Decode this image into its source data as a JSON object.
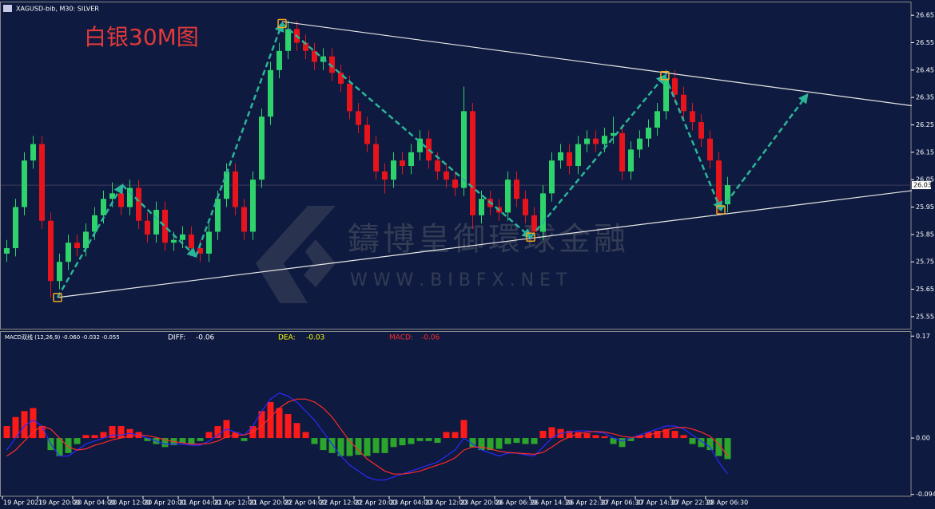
{
  "chart_data": {
    "type": "candlestick",
    "symbol_label": "XAGUSD-bib, M30:  SILVER",
    "title": "白银30M图",
    "watermark": "鑄博皇御環球金融",
    "watermark_url": "W W W . B I B F X . N E T",
    "up_color": "#2fd36b",
    "down_color": "#e8141c",
    "open": [
      25.78,
      25.8,
      25.95,
      26.12,
      26.18,
      25.9,
      25.68,
      25.75,
      25.82,
      25.8,
      25.86,
      25.92,
      25.98,
      26.0,
      25.95,
      26.02,
      25.9,
      25.85,
      25.94,
      25.82,
      25.83,
      25.85,
      25.8,
      25.78,
      25.86,
      25.98,
      26.08,
      25.95,
      25.86,
      26.05,
      26.28,
      26.45,
      26.52,
      26.6,
      26.55,
      26.52,
      26.48,
      26.5,
      26.44,
      26.4,
      26.3,
      26.25,
      26.18,
      26.08,
      26.05,
      26.12,
      26.1,
      26.15,
      26.2,
      26.12,
      26.08,
      26.05,
      26.02,
      26.3,
      25.92,
      25.98,
      25.95,
      25.93,
      26.05,
      25.98,
      25.92,
      25.86,
      26.0,
      26.12,
      26.15,
      26.1,
      26.18,
      26.2,
      26.18,
      26.21,
      26.22,
      26.08,
      26.16,
      26.2,
      26.24,
      26.3,
      26.42,
      26.36,
      26.3,
      26.26,
      26.2,
      26.12,
      25.96
    ],
    "high": [
      25.83,
      25.98,
      26.15,
      26.21,
      26.21,
      25.93,
      25.78,
      25.85,
      25.85,
      25.89,
      25.95,
      26.01,
      26.04,
      26.03,
      26.05,
      26.05,
      25.93,
      25.97,
      25.97,
      25.86,
      25.88,
      25.88,
      25.83,
      25.89,
      26.01,
      26.11,
      26.11,
      25.98,
      26.08,
      26.31,
      26.48,
      26.55,
      26.63,
      26.63,
      26.58,
      26.55,
      26.53,
      26.53,
      26.47,
      26.43,
      26.33,
      26.28,
      26.21,
      26.11,
      26.15,
      26.15,
      26.18,
      26.23,
      26.23,
      26.15,
      26.11,
      26.08,
      26.39,
      26.33,
      26.01,
      26.01,
      25.98,
      26.08,
      26.08,
      26.01,
      25.95,
      26.03,
      26.15,
      26.18,
      26.18,
      26.21,
      26.23,
      26.23,
      26.24,
      26.28,
      26.25,
      26.19,
      26.23,
      26.27,
      26.33,
      26.45,
      26.45,
      26.39,
      26.33,
      26.29,
      26.23,
      26.15,
      26.06
    ],
    "low": [
      25.75,
      25.77,
      25.92,
      26.09,
      25.87,
      25.62,
      25.65,
      25.72,
      25.77,
      25.77,
      25.83,
      25.89,
      25.95,
      25.92,
      25.92,
      25.87,
      25.82,
      25.82,
      25.79,
      25.79,
      25.8,
      25.77,
      25.75,
      25.75,
      25.83,
      25.95,
      25.92,
      25.83,
      25.83,
      26.02,
      26.25,
      26.42,
      26.49,
      26.52,
      26.49,
      26.45,
      26.45,
      26.41,
      26.37,
      26.27,
      26.22,
      26.15,
      26.05,
      26.0,
      26.02,
      26.07,
      26.07,
      26.12,
      26.09,
      26.05,
      26.02,
      25.99,
      25.99,
      25.87,
      25.89,
      25.92,
      25.9,
      25.9,
      25.95,
      25.89,
      25.84,
      25.83,
      25.97,
      26.09,
      26.07,
      26.07,
      26.15,
      26.15,
      26.15,
      26.18,
      26.05,
      26.05,
      26.13,
      26.17,
      26.21,
      26.27,
      26.33,
      26.27,
      26.23,
      26.17,
      26.09,
      25.93,
      25.93
    ],
    "close": [
      25.8,
      25.95,
      26.12,
      26.18,
      25.9,
      25.68,
      25.75,
      25.82,
      25.8,
      25.86,
      25.92,
      25.98,
      26.0,
      25.95,
      26.02,
      25.9,
      25.85,
      25.94,
      25.82,
      25.83,
      25.85,
      25.8,
      25.78,
      25.86,
      25.98,
      26.08,
      25.95,
      25.86,
      26.05,
      26.28,
      26.45,
      26.52,
      26.6,
      26.55,
      26.52,
      26.48,
      26.5,
      26.44,
      26.4,
      26.3,
      26.25,
      26.18,
      26.08,
      26.05,
      26.12,
      26.1,
      26.15,
      26.2,
      26.12,
      26.08,
      26.05,
      26.02,
      26.3,
      25.92,
      25.98,
      25.95,
      25.93,
      26.05,
      25.98,
      25.92,
      25.86,
      26.0,
      26.12,
      26.15,
      26.1,
      26.18,
      26.2,
      26.18,
      26.21,
      26.22,
      26.08,
      26.16,
      26.2,
      26.24,
      26.3,
      26.42,
      26.36,
      26.3,
      26.26,
      26.2,
      26.12,
      25.96,
      26.03
    ],
    "ylim": [
      25.506,
      26.7
    ],
    "yticks": [
      25.55,
      25.65,
      25.75,
      25.85,
      25.95,
      26.05,
      26.15,
      26.25,
      26.35,
      26.45,
      26.55,
      26.65
    ],
    "xticks": [
      {
        "value": 0,
        "label": "19 Apr 2021"
      },
      {
        "value": 4,
        "label": "19 Apr 20:00"
      },
      {
        "value": 8,
        "label": "20 Apr 04:00"
      },
      {
        "value": 12,
        "label": "20 Apr 12:00"
      },
      {
        "value": 16,
        "label": "20 Apr 20:00"
      },
      {
        "value": 20,
        "label": "21 Apr 04:00"
      },
      {
        "value": 24,
        "label": "21 Apr 12:00"
      },
      {
        "value": 28,
        "label": "21 Apr 20:00"
      },
      {
        "value": 32,
        "label": "22 Apr 04:00"
      },
      {
        "value": 36,
        "label": "22 Apr 12:00"
      },
      {
        "value": 40,
        "label": "22 Apr 20:00"
      },
      {
        "value": 44,
        "label": "23 Apr 04:00"
      },
      {
        "value": 48,
        "label": "23 Apr 12:00"
      },
      {
        "value": 52,
        "label": "23 Apr 20:00"
      },
      {
        "value": 56,
        "label": "26 Apr 06:30"
      },
      {
        "value": 60,
        "label": "26 Apr 14:30"
      },
      {
        "value": 64,
        "label": "26 Apr 22:30"
      },
      {
        "value": 68,
        "label": "27 Apr 06:30"
      },
      {
        "value": 72,
        "label": "27 Apr 14:30"
      },
      {
        "value": 76,
        "label": "27 Apr 22:30"
      },
      {
        "value": 80,
        "label": "28 Apr 06:30"
      }
    ],
    "current_price": 26.03,
    "zigzag": {
      "color": "#2bb598",
      "x": [
        6.27,
        13.64,
        22,
        31.82,
        60.09,
        75.36,
        81.73,
        91.55
      ],
      "y": [
        25.62,
        26.03,
        25.77,
        26.62,
        25.84,
        26.43,
        25.94,
        26.36
      ]
    },
    "pivots": {
      "color": "#f5a623",
      "x": [
        6.27,
        31.82,
        60.09,
        75.36,
        81.73
      ],
      "y": [
        25.62,
        26.62,
        25.84,
        26.43,
        25.94
      ]
    },
    "trendline_color": "#e8e8e8",
    "trendlines": [
      {
        "x": [
          31.82,
          103.45
        ],
        "y": [
          26.627,
          26.32
        ]
      },
      {
        "x": [
          6.27,
          103.45
        ],
        "y": [
          25.62,
          26.01
        ]
      }
    ],
    "macd": {
      "legend": "MACD双线 (12,26,9) -0.060 -0.032 -0.055",
      "positive_color": "#ff1a1a",
      "negative_color": "#2ca52c",
      "histogram": [
        0.02,
        0.035,
        0.045,
        0.05,
        0.02,
        -0.02,
        -0.03,
        -0.025,
        -0.01,
        0.005,
        0.005,
        0.01,
        0.02,
        0.02,
        0.015,
        0.01,
        -0.005,
        -0.01,
        -0.015,
        -0.012,
        -0.008,
        -0.01,
        -0.005,
        0.01,
        0.02,
        0.03,
        0.01,
        -0.005,
        0.02,
        0.045,
        0.06,
        0.05,
        0.04,
        0.025,
        0.01,
        -0.01,
        -0.02,
        -0.025,
        -0.03,
        -0.03,
        -0.028,
        -0.03,
        -0.025,
        -0.025,
        -0.015,
        -0.012,
        -0.01,
        -0.005,
        -0.005,
        -0.008,
        0.01,
        0.01,
        0.03,
        -0.015,
        -0.02,
        -0.02,
        -0.018,
        -0.01,
        -0.008,
        -0.01,
        -0.01,
        0.012,
        0.018,
        0.015,
        0.012,
        0.01,
        0.008,
        0.005,
        0.003,
        -0.01,
        -0.015,
        -0.005,
        0.005,
        0.01,
        0.012,
        0.015,
        0.012,
        0.005,
        -0.01,
        -0.015,
        -0.02,
        -0.03,
        -0.035
      ],
      "diff": {
        "name": "DIFF:",
        "value": -0.06,
        "color": "#2a2aff",
        "label_color": "#ffffff",
        "values": [
          -0.02,
          0.0,
          0.02,
          0.03,
          0.02,
          -0.01,
          -0.03,
          -0.03,
          -0.02,
          -0.01,
          -0.005,
          0.0,
          0.005,
          0.005,
          0.008,
          0.005,
          0.0,
          -0.005,
          -0.01,
          -0.01,
          -0.01,
          -0.012,
          -0.012,
          -0.005,
          0.005,
          0.015,
          0.01,
          0.005,
          0.02,
          0.045,
          0.065,
          0.075,
          0.07,
          0.06,
          0.045,
          0.03,
          0.01,
          -0.01,
          -0.03,
          -0.045,
          -0.055,
          -0.065,
          -0.07,
          -0.07,
          -0.065,
          -0.06,
          -0.055,
          -0.05,
          -0.045,
          -0.04,
          -0.03,
          -0.02,
          0.0,
          -0.01,
          -0.02,
          -0.025,
          -0.03,
          -0.025,
          -0.025,
          -0.028,
          -0.03,
          -0.015,
          0.0,
          0.008,
          0.01,
          0.012,
          0.012,
          0.01,
          0.008,
          0.0,
          -0.005,
          0.0,
          0.005,
          0.01,
          0.015,
          0.02,
          0.02,
          0.015,
          0.005,
          -0.005,
          -0.015,
          -0.04,
          -0.06
        ]
      },
      "dea": {
        "name": "DEA:",
        "value": -0.03,
        "color": "#ff2a2a",
        "label_color": "#ffff00",
        "values": [
          -0.03,
          -0.02,
          -0.005,
          0.01,
          0.02,
          0.015,
          0.0,
          -0.015,
          -0.02,
          -0.018,
          -0.012,
          -0.008,
          -0.003,
          0.0,
          0.003,
          0.005,
          0.004,
          0.001,
          -0.003,
          -0.006,
          -0.008,
          -0.01,
          -0.01,
          -0.009,
          -0.005,
          0.002,
          0.005,
          0.005,
          0.01,
          0.02,
          0.035,
          0.05,
          0.06,
          0.065,
          0.065,
          0.06,
          0.05,
          0.035,
          0.015,
          -0.005,
          -0.02,
          -0.035,
          -0.045,
          -0.055,
          -0.06,
          -0.06,
          -0.058,
          -0.055,
          -0.05,
          -0.045,
          -0.04,
          -0.033,
          -0.02,
          -0.015,
          -0.015,
          -0.018,
          -0.022,
          -0.024,
          -0.025,
          -0.026,
          -0.027,
          -0.024,
          -0.015,
          -0.005,
          0.002,
          0.007,
          0.01,
          0.011,
          0.01,
          0.007,
          0.003,
          0.001,
          0.002,
          0.005,
          0.009,
          0.013,
          0.017,
          0.018,
          0.015,
          0.01,
          0.003,
          -0.01,
          -0.03
        ]
      },
      "macd_label": {
        "name": "MACD:",
        "value": -0.06,
        "label_color": "#ff2a2a"
      },
      "ylim": [
        -0.097,
        0.177
      ],
      "yticks": [
        0.17,
        {
          "value": 0,
          "label": "0.00"
        },
        -0.094
      ]
    }
  }
}
